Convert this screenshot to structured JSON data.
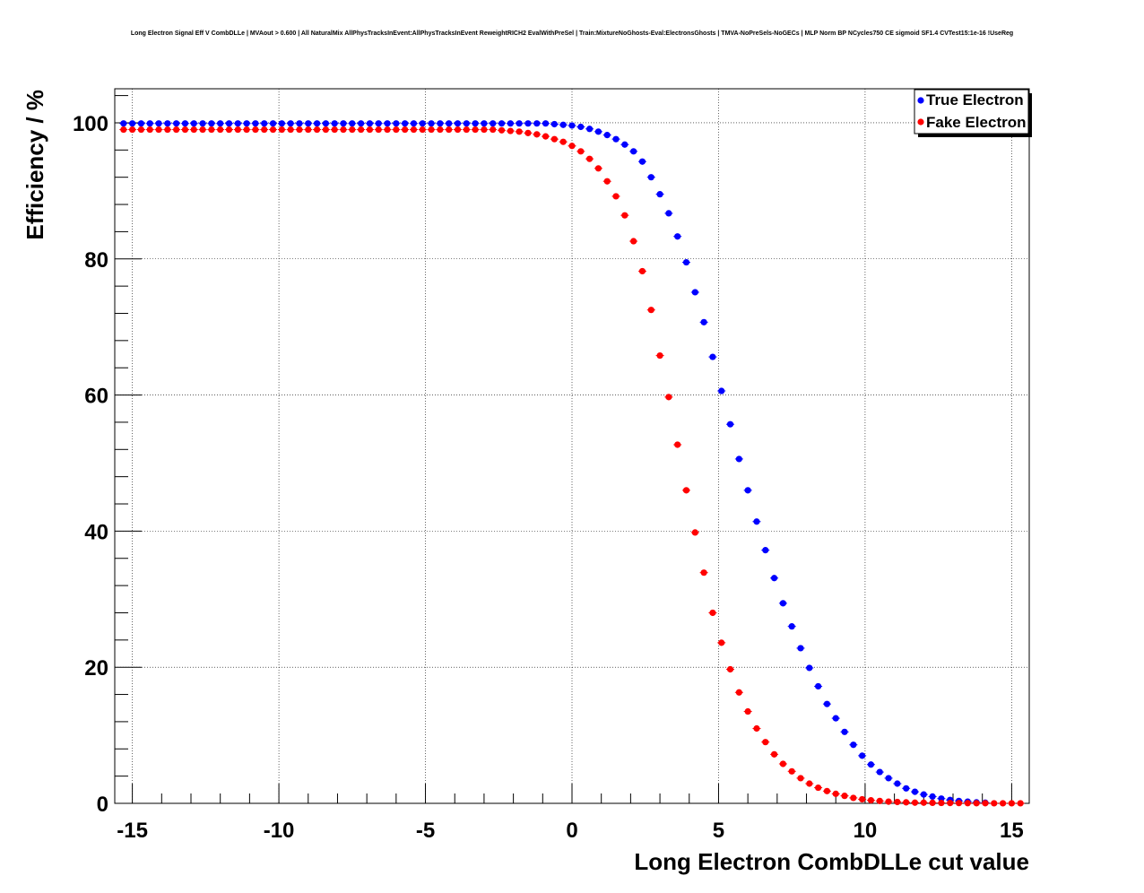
{
  "chart_data": {
    "type": "scatter",
    "title": "Long Electron Signal Eff V CombDLLe | MVAout > 0.600 | All NaturalMix AllPhysTracksInEvent:AllPhysTracksInEvent ReweightRICH2 EvalWithPreSel | Train:MixtureNoGhosts-Eval:ElectronsGhosts | TMVA-NoPreSels-NoGECs | MLP Norm BP NCycles750 CE sigmoid SF1.4 CVTest15:1e-16 !UseReg",
    "xlabel": "Long Electron CombDLLe cut value",
    "ylabel": "Efficiency / %",
    "xlim": [
      -15.6,
      15.6
    ],
    "ylim": [
      0,
      105
    ],
    "x_ticks": [
      -15,
      -10,
      -5,
      0,
      5,
      10,
      15
    ],
    "y_ticks": [
      0,
      20,
      40,
      60,
      80,
      100
    ],
    "x_tick_labels": [
      "-15",
      "-10",
      "-5",
      "0",
      "5",
      "10",
      "15"
    ],
    "y_tick_labels": [
      "0",
      "20",
      "40",
      "60",
      "80",
      "100"
    ],
    "grid": true,
    "legend_position": "top-right",
    "x": [
      -15.3,
      -15.0,
      -14.7,
      -14.4,
      -14.1,
      -13.8,
      -13.5,
      -13.2,
      -12.9,
      -12.6,
      -12.3,
      -12.0,
      -11.7,
      -11.4,
      -11.1,
      -10.8,
      -10.5,
      -10.2,
      -9.9,
      -9.6,
      -9.3,
      -9.0,
      -8.7,
      -8.4,
      -8.1,
      -7.8,
      -7.5,
      -7.2,
      -6.9,
      -6.6,
      -6.3,
      -6.0,
      -5.7,
      -5.4,
      -5.1,
      -4.8,
      -4.5,
      -4.2,
      -3.9,
      -3.6,
      -3.3,
      -3.0,
      -2.7,
      -2.4,
      -2.1,
      -1.8,
      -1.5,
      -1.2,
      -0.9,
      -0.6,
      -0.3,
      0.0,
      0.3,
      0.6,
      0.9,
      1.2,
      1.5,
      1.8,
      2.1,
      2.4,
      2.7,
      3.0,
      3.3,
      3.6,
      3.9,
      4.2,
      4.5,
      4.8,
      5.1,
      5.4,
      5.7,
      6.0,
      6.3,
      6.6,
      6.9,
      7.2,
      7.5,
      7.8,
      8.1,
      8.4,
      8.7,
      9.0,
      9.3,
      9.6,
      9.9,
      10.2,
      10.5,
      10.8,
      11.1,
      11.4,
      11.7,
      12.0,
      12.3,
      12.6,
      12.9,
      13.2,
      13.5,
      13.8,
      14.1,
      14.4,
      14.7,
      15.0,
      15.3
    ],
    "series": [
      {
        "name": "True Electron",
        "color": "#0000ff",
        "values": [
          99.9,
          99.9,
          99.9,
          99.9,
          99.9,
          99.9,
          99.9,
          99.9,
          99.9,
          99.9,
          99.9,
          99.9,
          99.9,
          99.9,
          99.9,
          99.9,
          99.9,
          99.9,
          99.9,
          99.9,
          99.9,
          99.9,
          99.9,
          99.9,
          99.9,
          99.9,
          99.9,
          99.9,
          99.9,
          99.9,
          99.9,
          99.9,
          99.9,
          99.9,
          99.9,
          99.9,
          99.9,
          99.9,
          99.9,
          99.9,
          99.9,
          99.9,
          99.9,
          99.9,
          99.9,
          99.9,
          99.9,
          99.9,
          99.9,
          99.8,
          99.7,
          99.6,
          99.4,
          99.1,
          98.7,
          98.2,
          97.6,
          96.8,
          95.8,
          94.3,
          92.0,
          89.5,
          86.7,
          83.3,
          79.5,
          75.1,
          70.7,
          65.6,
          60.6,
          55.7,
          50.6,
          46.0,
          41.4,
          37.2,
          33.1,
          29.4,
          26.0,
          22.8,
          19.9,
          17.2,
          14.6,
          12.5,
          10.5,
          8.6,
          7.0,
          5.7,
          4.6,
          3.7,
          2.9,
          2.2,
          1.7,
          1.3,
          1.0,
          0.7,
          0.5,
          0.35,
          0.25,
          0.15,
          0.1
        ]
      },
      {
        "name": "Fake Electron",
        "color": "#ff0000",
        "values": [
          99.0,
          99.0,
          99.0,
          99.0,
          99.0,
          99.0,
          99.0,
          99.0,
          99.0,
          99.0,
          99.0,
          99.0,
          99.0,
          99.0,
          99.0,
          99.0,
          99.0,
          99.0,
          99.0,
          99.0,
          99.0,
          99.0,
          99.0,
          99.0,
          99.0,
          99.0,
          99.0,
          99.0,
          99.0,
          99.0,
          99.0,
          99.0,
          99.0,
          99.0,
          99.0,
          99.0,
          99.0,
          99.0,
          99.0,
          99.0,
          99.0,
          99.0,
          99.0,
          98.9,
          98.8,
          98.7,
          98.5,
          98.3,
          98.0,
          97.6,
          97.2,
          96.6,
          95.8,
          94.7,
          93.3,
          91.4,
          89.2,
          86.4,
          82.6,
          78.2,
          72.5,
          65.8,
          59.7,
          52.7,
          46.0,
          39.8,
          33.9,
          28.0,
          23.6,
          19.7,
          16.3,
          13.5,
          11.0,
          9.0,
          7.2,
          5.8,
          4.7,
          3.7,
          2.9,
          2.3,
          1.8,
          1.4,
          1.1,
          0.8,
          0.6,
          0.45,
          0.35,
          0.25,
          0.2,
          0.15,
          0.1,
          0.1,
          0.08,
          0.06,
          0.05,
          0.04,
          0.03,
          0.02,
          0.02,
          0.01,
          0.01,
          0.01,
          0.01
        ]
      }
    ]
  }
}
